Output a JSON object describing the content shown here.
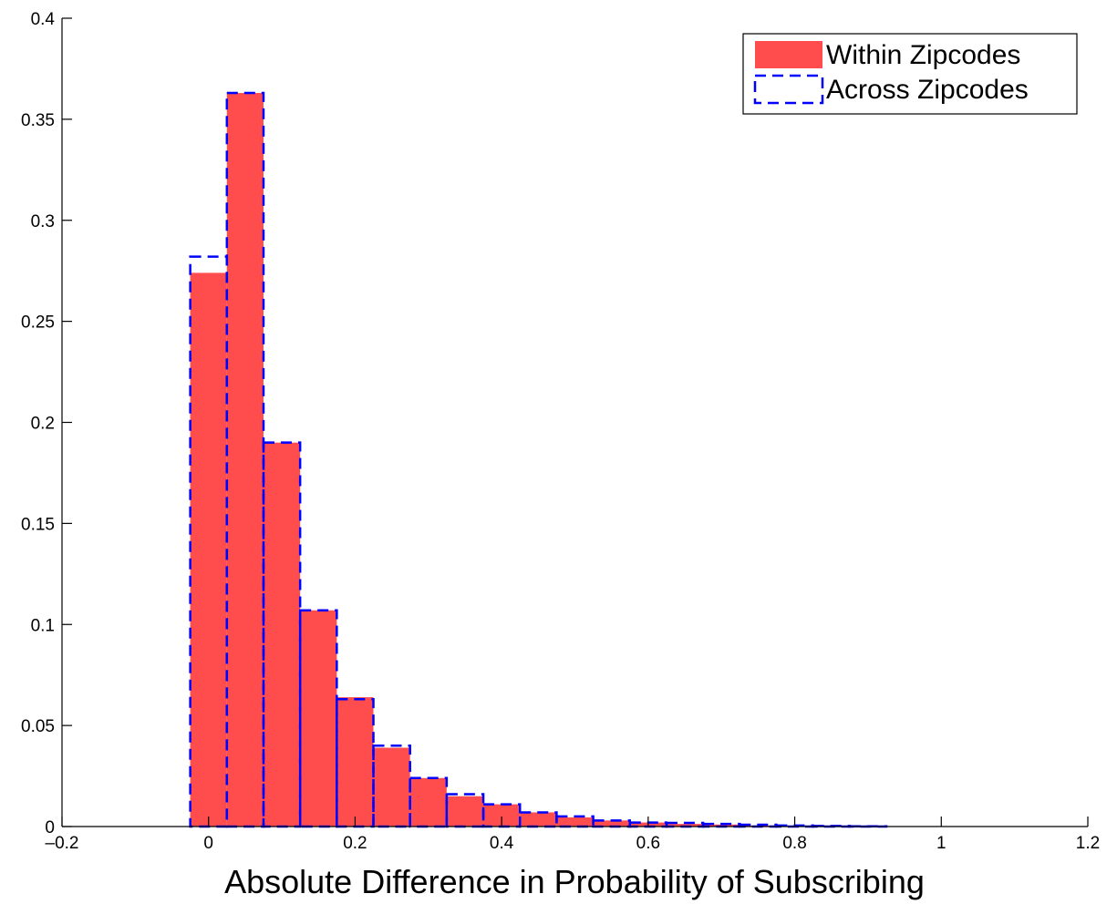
{
  "chart_data": {
    "type": "histogram",
    "xlabel": "Absolute Difference in Probability of Subscribing",
    "bins": [
      -0.025,
      0.025,
      0.075,
      0.125,
      0.175,
      0.225,
      0.275,
      0.325,
      0.375,
      0.425,
      0.475,
      0.525,
      0.575,
      0.625,
      0.675,
      0.725,
      0.775,
      0.825,
      0.875,
      0.925
    ],
    "series": [
      {
        "name": "Within Zipcodes",
        "color": "#ff4d4d",
        "style": "filled",
        "values": [
          0.274,
          0.363,
          0.19,
          0.107,
          0.064,
          0.039,
          0.024,
          0.015,
          0.011,
          0.007,
          0.0045,
          0.003,
          0.002,
          0.0013,
          0.001,
          0.0005,
          0.0003,
          0.0002,
          0.0001
        ]
      },
      {
        "name": "Across Zipcodes",
        "color": "#0000ff",
        "style": "dashed",
        "values": [
          0.282,
          0.363,
          0.19,
          0.107,
          0.063,
          0.04,
          0.024,
          0.016,
          0.011,
          0.007,
          0.005,
          0.003,
          0.002,
          0.0018,
          0.0013,
          0.0009,
          0.0005,
          0.0003,
          0.0001
        ]
      }
    ],
    "xlim": [
      -0.2,
      1.2
    ],
    "xticks": [
      {
        "value": -0.2,
        "label": "–0.2"
      },
      0,
      0.2,
      0.4,
      0.6,
      0.8,
      1,
      1.2
    ],
    "ylim": [
      0,
      0.4
    ],
    "yticks": [
      0,
      0.05,
      0.1,
      0.15,
      0.2,
      0.25,
      0.3,
      0.35,
      0.4
    ],
    "grid": false,
    "legend": "top-right"
  }
}
